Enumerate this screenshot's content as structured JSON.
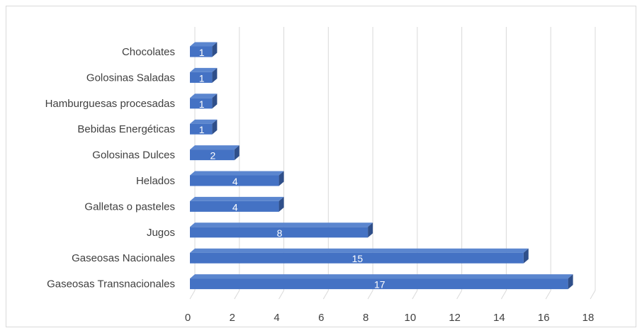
{
  "chart_data": {
    "type": "bar",
    "orientation": "horizontal",
    "style": "3d",
    "categories": [
      "Chocolates",
      "Golosinas Saladas",
      "Hamburguesas procesadas",
      "Bebidas Energéticas",
      "Golosinas Dulces",
      "Helados",
      "Galletas o pasteles",
      "Jugos",
      "Gaseosas Nacionales",
      "Gaseosas Transnacionales"
    ],
    "values": [
      1,
      1,
      1,
      1,
      2,
      4,
      4,
      8,
      15,
      17
    ],
    "xticks": [
      "0",
      "2",
      "4",
      "6",
      "8",
      "10",
      "12",
      "14",
      "16",
      "18"
    ],
    "xlim": [
      0,
      18
    ],
    "data_labels": true,
    "grid": "vertical",
    "legend": "none",
    "colors": {
      "bar_front": "#4472c4",
      "bar_top": "#5b86cf",
      "bar_side": "#2f4f8a",
      "grid": "#d9d9d9",
      "text": "#404040",
      "label": "#ffffff"
    }
  }
}
